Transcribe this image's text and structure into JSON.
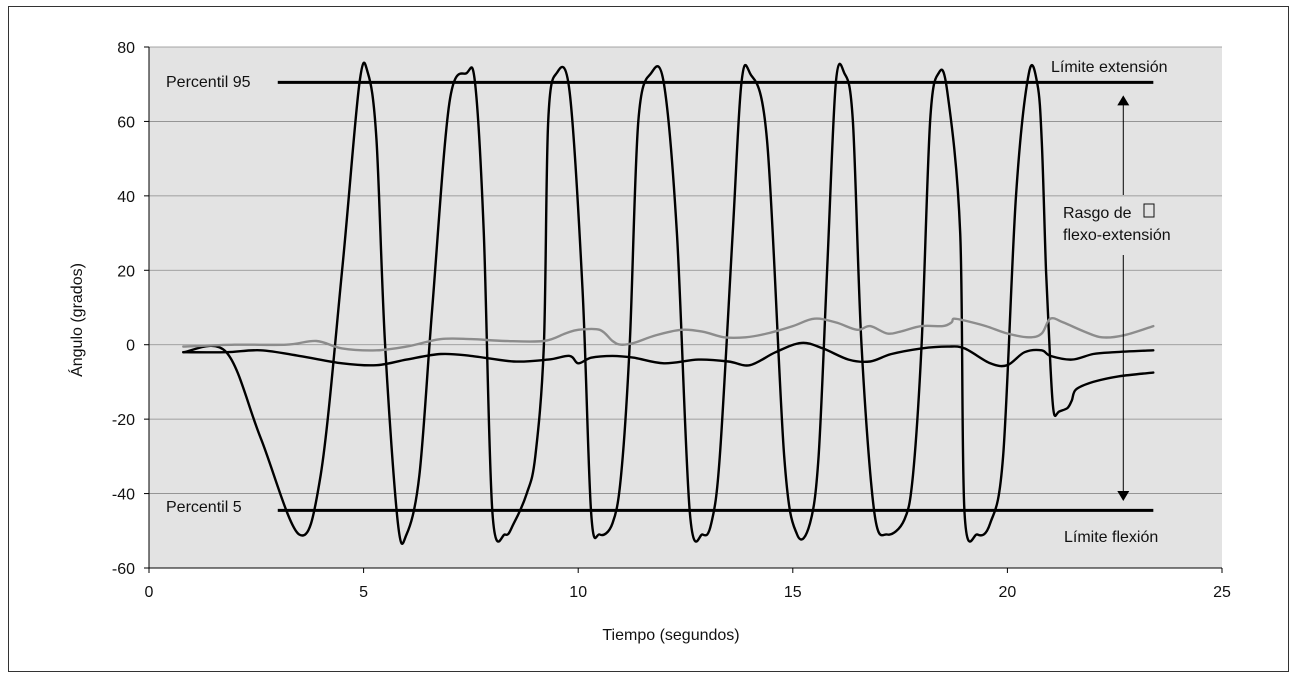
{
  "chart_data": {
    "type": "line",
    "xlabel": "Tiempo (segundos)",
    "ylabel": "Ángulo (grados)",
    "xlim": [
      0,
      25
    ],
    "ylim": [
      -60,
      80
    ],
    "xticks": [
      "0",
      "5",
      "10",
      "15",
      "20",
      "25"
    ],
    "yticks": [
      "-60",
      "-40",
      "-20",
      "0",
      "20",
      "40",
      "60",
      "80"
    ],
    "grid": "horizontal",
    "background_color": "#e3e3e3",
    "annotations": {
      "p95_label": "Percentil 95",
      "p5_label": "Percentil 5",
      "ext_label": "Límite extensión",
      "flex_label": "Límite flexión",
      "range_label_1": "Rasgo de",
      "range_label_2": "flexo-extensión"
    },
    "reference_lines": [
      {
        "y": 70.5,
        "x": [
          3,
          23.4
        ]
      },
      {
        "y": -44.5,
        "x": [
          3,
          23.4
        ]
      }
    ],
    "range_arrow": {
      "x": 22.7,
      "y": [
        67,
        -42
      ]
    },
    "series": [
      {
        "color": "#000000",
        "x": [
          0.8,
          1.8,
          2.6,
          3.5,
          4.0,
          4.5,
          4.9,
          5.1,
          5.3,
          5.5,
          5.8,
          6.0,
          6.3,
          6.6,
          7.0,
          7.4,
          7.6,
          7.8,
          8.0,
          8.3,
          8.5,
          8.8,
          9.0,
          9.2,
          9.3,
          9.5,
          9.8,
          10.1,
          10.3,
          10.5,
          10.8,
          11.0,
          11.2,
          11.4,
          11.7,
          12.0,
          12.3,
          12.6,
          12.9,
          13.1,
          13.3,
          13.6,
          13.8,
          14.0,
          14.4,
          14.8,
          15.1,
          15.4,
          15.6,
          15.8,
          16.0,
          16.2,
          16.4,
          16.6,
          16.9,
          17.2,
          17.6,
          17.8,
          18.0,
          18.2,
          18.4,
          18.6,
          18.9,
          19.0,
          19.3,
          19.6,
          19.9,
          20.2,
          20.5,
          20.7,
          20.8,
          20.9,
          21.0,
          21.05,
          21.1,
          21.2,
          21.4,
          21.5,
          21.6,
          22.0,
          22.6,
          23.4
        ],
        "y": [
          -2,
          -2,
          -25,
          -51,
          -35,
          20,
          70,
          73,
          55,
          0,
          -48,
          -51,
          -35,
          10,
          65,
          73,
          70,
          30,
          -45,
          -51,
          -48,
          -40,
          -30,
          0,
          60,
          73,
          68,
          15,
          -45,
          -51,
          -48,
          -35,
          0,
          60,
          73,
          70,
          30,
          -45,
          -51,
          -48,
          -30,
          30,
          70,
          73,
          55,
          -30,
          -51,
          -48,
          -30,
          20,
          70,
          73,
          60,
          0,
          -45,
          -51,
          -47,
          -35,
          0,
          60,
          73,
          68,
          30,
          -45,
          -51,
          -48,
          -30,
          40,
          73,
          70,
          55,
          20,
          -5,
          -15,
          -19,
          -18,
          -17,
          -15,
          -12,
          -10,
          -8.5,
          -7.5
        ]
      },
      {
        "color": "#000000",
        "x": [
          0.8,
          1.8,
          2.6,
          3.5,
          4.5,
          5.3,
          6.0,
          6.8,
          7.5,
          8.5,
          9.3,
          9.8,
          10.0,
          10.3,
          10.8,
          11.3,
          12.0,
          12.8,
          13.5,
          14.0,
          14.6,
          15.2,
          15.7,
          16.3,
          16.8,
          17.3,
          18.0,
          18.6,
          19.0,
          19.6,
          20.0,
          20.4,
          20.8,
          21.0,
          21.5,
          22.0,
          22.5,
          23.4
        ],
        "y": [
          -2,
          -2,
          -1.5,
          -3,
          -5,
          -5.5,
          -4,
          -2.5,
          -3,
          -4.5,
          -4,
          -3,
          -5,
          -3.5,
          -3,
          -3.5,
          -5,
          -4,
          -4.5,
          -5.5,
          -2,
          0.5,
          -1,
          -4,
          -4.5,
          -2.5,
          -1,
          -0.5,
          -1,
          -5,
          -5.5,
          -2,
          -1.5,
          -3,
          -4,
          -2.5,
          -2,
          -1.5
        ]
      },
      {
        "color": "#8c8c8c",
        "x": [
          0.8,
          2.0,
          3.2,
          3.9,
          4.5,
          5.3,
          6.0,
          6.8,
          7.5,
          8.3,
          9.2,
          9.7,
          10.0,
          10.5,
          10.8,
          11.0,
          11.3,
          11.8,
          12.4,
          12.9,
          13.4,
          13.9,
          14.4,
          15.0,
          15.5,
          16.0,
          16.5,
          16.8,
          17.2,
          17.5,
          18.0,
          18.5,
          18.7,
          18.75,
          19.0,
          19.5,
          20.0,
          20.5,
          20.8,
          21.0,
          21.3,
          21.8,
          22.2,
          22.7,
          23.4
        ],
        "y": [
          -0.5,
          0,
          0,
          1,
          -1,
          -1.5,
          -0.5,
          1.5,
          1.5,
          1,
          1,
          3,
          4,
          4,
          1,
          0,
          0.5,
          2.5,
          4,
          3.5,
          2,
          2,
          3,
          5,
          7,
          6,
          4,
          5,
          3,
          3.5,
          5,
          5,
          6,
          7,
          6.5,
          5,
          3,
          2,
          3,
          7,
          6,
          3.5,
          2,
          2.5,
          5
        ]
      }
    ]
  }
}
